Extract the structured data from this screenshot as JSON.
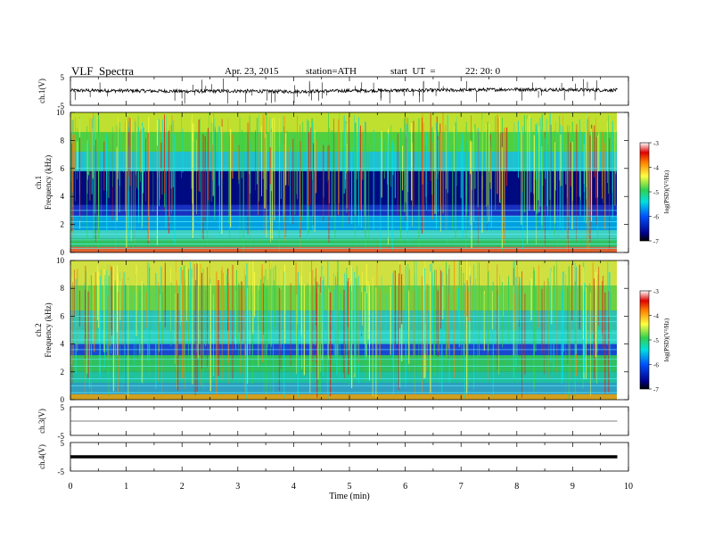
{
  "header": {
    "title": "VLF  Spectra",
    "date": "Apr. 23, 2015",
    "station": "station=ATH",
    "start_label": "start  UT  =",
    "start_value": "22: 20: 0"
  },
  "colors": {
    "spectrum_cold": "#00008b",
    "spectrum_mid": "#00e0e0",
    "spectrum_green": "#30d050",
    "spectrum_yellow": "#ffff40",
    "spectrum_hot": "#e00000",
    "trace": "#000000"
  },
  "chart_data": [
    {
      "type": "line",
      "panel": "ch1-waveform",
      "ylabel": "ch.1(V)",
      "yticks": [
        "5",
        "-5"
      ],
      "ylim": [
        -5,
        5
      ],
      "x": [
        0,
        1,
        2,
        3,
        4,
        5,
        6,
        7,
        8,
        9,
        9.8
      ],
      "values": [
        0.2,
        0.1,
        -0.1,
        0.0,
        -0.2,
        0.1,
        0.2,
        0.3,
        0.6,
        0.4,
        0.3
      ]
    },
    {
      "type": "heatmap",
      "panel": "ch1-spectrogram",
      "ylabel_top": "ch.1",
      "ylabel": "Frequency  (kHz)",
      "yticks": [
        "0",
        "2",
        "4",
        "6",
        "8",
        "10"
      ],
      "ylim": [
        0,
        10
      ],
      "colorbar_label": "log(PSD)(V²/Hz)",
      "colorbar_ticks": [
        "-3",
        "-4",
        "-5",
        "-6",
        "-7"
      ],
      "colorbar_range": [
        -7,
        -3
      ]
    },
    {
      "type": "heatmap",
      "panel": "ch2-spectrogram",
      "ylabel_top": "ch.2",
      "ylabel": "Frequency  (kHz)",
      "yticks": [
        "0",
        "2",
        "4",
        "6",
        "8",
        "10"
      ],
      "ylim": [
        0,
        10
      ],
      "colorbar_label": "log(PSD)(V²/Hz)",
      "colorbar_ticks": [
        "-3",
        "-4",
        "-5",
        "-6",
        "-7"
      ],
      "colorbar_range": [
        -7,
        -3
      ]
    },
    {
      "type": "line",
      "panel": "ch3-waveform",
      "ylabel": "ch.3(V)",
      "yticks": [
        "5",
        "-5"
      ],
      "ylim": [
        -5,
        5
      ],
      "x": [
        0,
        9.8
      ],
      "values": [
        0,
        0
      ]
    },
    {
      "type": "line",
      "panel": "ch4-waveform",
      "ylabel": "ch.4(V)",
      "yticks": [
        "5",
        "-5"
      ],
      "ylim": [
        -5,
        5
      ],
      "x": [
        0,
        9.8
      ],
      "values": [
        0,
        0
      ]
    }
  ],
  "xaxis": {
    "label": "Time  (min)",
    "ticks": [
      "0",
      "1",
      "2",
      "3",
      "4",
      "5",
      "6",
      "7",
      "8",
      "9",
      "10"
    ],
    "xlim": [
      0,
      10
    ],
    "data_end": 9.8
  }
}
